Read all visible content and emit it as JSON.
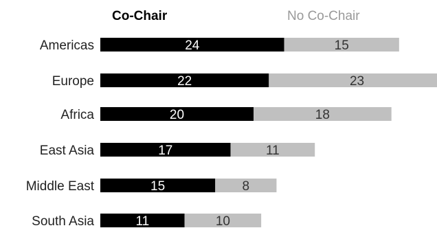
{
  "chart_data": {
    "type": "bar",
    "orientation": "horizontal",
    "stacked": true,
    "categories": [
      "Americas",
      "Europe",
      "Africa",
      "East Asia",
      "Middle East",
      "South Asia"
    ],
    "series": [
      {
        "name": "Co-Chair",
        "values": [
          24,
          22,
          20,
          17,
          15,
          11
        ],
        "color": "#000000",
        "label_color": "#ffffff"
      },
      {
        "name": "No Co-Chair",
        "values": [
          15,
          23,
          18,
          11,
          8,
          10
        ],
        "color": "#c0c0c0",
        "label_color": "#333333"
      }
    ],
    "legend": {
      "placement": "top",
      "items": [
        {
          "label": "Co-Chair",
          "color": "#000000",
          "bold": true
        },
        {
          "label": "No Co-Chair",
          "color": "#999999",
          "bold": false
        }
      ]
    },
    "title": "",
    "xlabel": "",
    "ylabel": "",
    "grid": false
  }
}
